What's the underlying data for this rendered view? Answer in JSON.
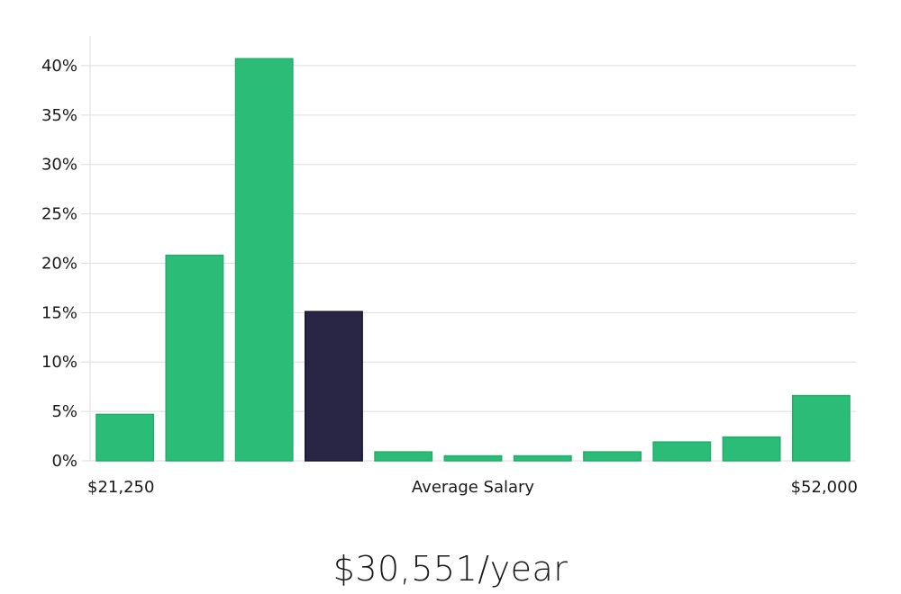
{
  "chart_data": {
    "type": "bar",
    "values": [
      4.7,
      20.8,
      40.7,
      15.1,
      0.9,
      0.5,
      0.5,
      0.9,
      1.9,
      2.4,
      6.6
    ],
    "highlight_index": 3,
    "ylim": [
      0,
      43
    ],
    "y_ticks": [
      0,
      5,
      10,
      15,
      20,
      25,
      30,
      35,
      40
    ],
    "y_tick_format": "%",
    "x_labels": {
      "min": "$21,250",
      "center": "Average Salary",
      "max": "$52,000"
    },
    "grid": true,
    "colors": {
      "bar": "#2bbd77",
      "bar_stroke": "#22ad6b",
      "highlight": "#282545",
      "highlight_stroke": "#15132e"
    }
  },
  "summary": {
    "average_salary": "$30,551/year"
  }
}
